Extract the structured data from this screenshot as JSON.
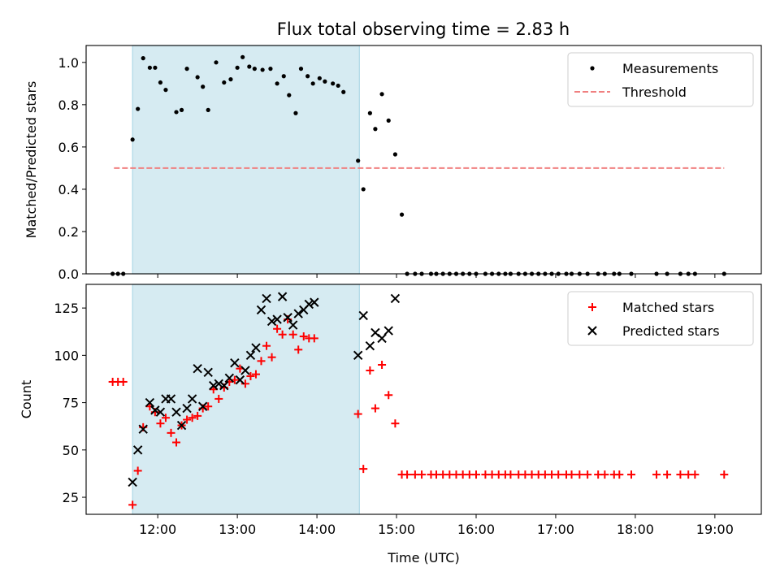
{
  "title": "Flux total observing time = 2.83 h",
  "chart_data": [
    {
      "type": "scatter",
      "ylabel": "Matched/Predicted stars",
      "xlim": [
        "11:06",
        "19:35"
      ],
      "ylim": [
        0,
        1.08
      ],
      "yticks": [
        "0.0",
        "0.2",
        "0.4",
        "0.6",
        "0.8",
        "1.0"
      ],
      "ytick_values": [
        0,
        0.2,
        0.4,
        0.6,
        0.8,
        1.0
      ],
      "shaded_span": [
        "11:41",
        "14:32"
      ],
      "legend_position": "top-right",
      "legend": [
        {
          "label": "Measurements",
          "marker": "dot",
          "color": "#000000"
        },
        {
          "label": "Threshold",
          "marker": "dashed-line",
          "color": "#f08080"
        }
      ],
      "threshold": {
        "value": 0.5,
        "x_range": [
          "11:27",
          "16:07"
        ]
      },
      "threshold_extended_end": "19:07",
      "measurements": [
        [
          "11:26",
          0
        ],
        [
          "11:30",
          0
        ],
        [
          "11:34",
          0
        ],
        [
          "11:41",
          0.635
        ],
        [
          "11:45",
          0.78
        ],
        [
          "11:49",
          1.02
        ],
        [
          "11:54",
          0.975
        ],
        [
          "11:58",
          0.975
        ],
        [
          "12:02",
          0.905
        ],
        [
          "12:06",
          0.87
        ],
        [
          "12:14",
          0.765
        ],
        [
          "12:18",
          0.775
        ],
        [
          "12:22",
          0.97
        ],
        [
          "12:30",
          0.93
        ],
        [
          "12:34",
          0.885
        ],
        [
          "12:38",
          0.775
        ],
        [
          "12:44",
          1.0
        ],
        [
          "12:50",
          0.905
        ],
        [
          "12:55",
          0.92
        ],
        [
          "13:00",
          0.975
        ],
        [
          "13:04",
          1.025
        ],
        [
          "13:09",
          0.98
        ],
        [
          "13:13",
          0.97
        ],
        [
          "13:19",
          0.965
        ],
        [
          "13:25",
          0.97
        ],
        [
          "13:30",
          0.9
        ],
        [
          "13:35",
          0.935
        ],
        [
          "13:39",
          0.845
        ],
        [
          "13:44",
          0.76
        ],
        [
          "13:48",
          0.97
        ],
        [
          "13:53",
          0.935
        ],
        [
          "13:57",
          0.9
        ],
        [
          "14:02",
          0.925
        ],
        [
          "14:06",
          0.91
        ],
        [
          "14:12",
          0.9
        ],
        [
          "14:16",
          0.89
        ],
        [
          "14:20",
          0.86
        ],
        [
          "14:31",
          0.535
        ],
        [
          "14:35",
          0.4
        ],
        [
          "14:40",
          0.76
        ],
        [
          "14:44",
          0.685
        ],
        [
          "14:49",
          0.85
        ],
        [
          "14:54",
          0.725
        ],
        [
          "14:59",
          0.565
        ],
        [
          "15:04",
          0.28
        ],
        [
          "15:08",
          0
        ],
        [
          "15:14",
          0
        ],
        [
          "15:19",
          0
        ],
        [
          "15:26",
          0
        ],
        [
          "15:30",
          0
        ],
        [
          "15:35",
          0
        ],
        [
          "15:40",
          0
        ],
        [
          "15:45",
          0
        ],
        [
          "15:50",
          0
        ],
        [
          "15:55",
          0
        ],
        [
          "16:00",
          0
        ],
        [
          "16:07",
          0
        ],
        [
          "16:12",
          0
        ],
        [
          "16:17",
          0
        ],
        [
          "16:22",
          0
        ],
        [
          "16:26",
          0
        ],
        [
          "16:32",
          0
        ],
        [
          "16:37",
          0
        ],
        [
          "16:42",
          0
        ],
        [
          "16:47",
          0
        ],
        [
          "16:52",
          0
        ],
        [
          "16:57",
          0
        ],
        [
          "17:02",
          0
        ],
        [
          "17:08",
          0
        ],
        [
          "17:12",
          0
        ],
        [
          "17:18",
          0
        ],
        [
          "17:24",
          0
        ],
        [
          "17:32",
          0
        ],
        [
          "17:37",
          0
        ],
        [
          "17:44",
          0
        ],
        [
          "17:48",
          0
        ],
        [
          "17:57",
          0
        ],
        [
          "18:16",
          0
        ],
        [
          "18:24",
          0
        ],
        [
          "18:34",
          0
        ],
        [
          "18:40",
          0
        ],
        [
          "18:45",
          0
        ],
        [
          "19:07",
          0
        ]
      ]
    },
    {
      "type": "scatter",
      "xlabel": "Time (UTC)",
      "ylabel": "Count",
      "xlim": [
        "11:06",
        "19:35"
      ],
      "ylim": [
        16,
        137.5
      ],
      "yticks": [
        "25",
        "50",
        "75",
        "100",
        "125"
      ],
      "ytick_values": [
        25,
        50,
        75,
        100,
        125
      ],
      "xticks": [
        "12:00",
        "13:00",
        "14:00",
        "15:00",
        "16:00",
        "17:00",
        "18:00",
        "19:00"
      ],
      "shaded_span": [
        "11:41",
        "14:32"
      ],
      "legend_position": "top-right",
      "series": [
        {
          "name": "Matched stars",
          "marker": "plus",
          "color": "#ff0000",
          "points": [
            [
              "11:26",
              86
            ],
            [
              "11:30",
              86
            ],
            [
              "11:34",
              86
            ],
            [
              "11:41",
              21
            ],
            [
              "11:45",
              39
            ],
            [
              "11:49",
              62
            ],
            [
              "11:54",
              73
            ],
            [
              "11:58",
              70
            ],
            [
              "12:02",
              64
            ],
            [
              "12:06",
              67
            ],
            [
              "12:10",
              59
            ],
            [
              "12:14",
              54
            ],
            [
              "12:18",
              63
            ],
            [
              "12:22",
              66
            ],
            [
              "12:26",
              67
            ],
            [
              "12:30",
              68
            ],
            [
              "12:34",
              72
            ],
            [
              "12:38",
              73
            ],
            [
              "12:42",
              82
            ],
            [
              "12:46",
              77
            ],
            [
              "12:50",
              83
            ],
            [
              "12:54",
              86
            ],
            [
              "12:58",
              87
            ],
            [
              "13:02",
              93
            ],
            [
              "13:06",
              85
            ],
            [
              "13:10",
              89
            ],
            [
              "13:14",
              90
            ],
            [
              "13:18",
              97
            ],
            [
              "13:22",
              105
            ],
            [
              "13:26",
              99
            ],
            [
              "13:30",
              114
            ],
            [
              "13:34",
              111
            ],
            [
              "13:38",
              119
            ],
            [
              "13:42",
              111
            ],
            [
              "13:46",
              103
            ],
            [
              "13:50",
              110
            ],
            [
              "13:54",
              109
            ],
            [
              "13:58",
              109
            ],
            [
              "14:31",
              69
            ],
            [
              "14:35",
              40
            ],
            [
              "14:40",
              92
            ],
            [
              "14:44",
              72
            ],
            [
              "14:49",
              95
            ],
            [
              "14:54",
              79
            ],
            [
              "14:59",
              64
            ],
            [
              "15:04",
              37
            ],
            [
              "15:08",
              37
            ],
            [
              "15:14",
              37
            ],
            [
              "15:19",
              37
            ],
            [
              "15:26",
              37
            ],
            [
              "15:30",
              37
            ],
            [
              "15:35",
              37
            ],
            [
              "15:40",
              37
            ],
            [
              "15:45",
              37
            ],
            [
              "15:50",
              37
            ],
            [
              "15:55",
              37
            ],
            [
              "16:00",
              37
            ],
            [
              "16:07",
              37
            ],
            [
              "16:12",
              37
            ],
            [
              "16:17",
              37
            ],
            [
              "16:22",
              37
            ],
            [
              "16:26",
              37
            ],
            [
              "16:32",
              37
            ],
            [
              "16:37",
              37
            ],
            [
              "16:42",
              37
            ],
            [
              "16:47",
              37
            ],
            [
              "16:52",
              37
            ],
            [
              "16:57",
              37
            ],
            [
              "17:02",
              37
            ],
            [
              "17:08",
              37
            ],
            [
              "17:12",
              37
            ],
            [
              "17:18",
              37
            ],
            [
              "17:24",
              37
            ],
            [
              "17:32",
              37
            ],
            [
              "17:37",
              37
            ],
            [
              "17:44",
              37
            ],
            [
              "17:48",
              37
            ],
            [
              "17:57",
              37
            ],
            [
              "18:16",
              37
            ],
            [
              "18:24",
              37
            ],
            [
              "18:34",
              37
            ],
            [
              "18:40",
              37
            ],
            [
              "18:45",
              37
            ],
            [
              "19:07",
              37
            ]
          ]
        },
        {
          "name": "Predicted stars",
          "marker": "x",
          "color": "#000000",
          "points": [
            [
              "11:41",
              33
            ],
            [
              "11:45",
              50
            ],
            [
              "11:49",
              61
            ],
            [
              "11:54",
              75
            ],
            [
              "11:58",
              71
            ],
            [
              "12:02",
              70
            ],
            [
              "12:06",
              77
            ],
            [
              "12:10",
              77
            ],
            [
              "12:14",
              70
            ],
            [
              "12:18",
              63
            ],
            [
              "12:22",
              72
            ],
            [
              "12:26",
              77
            ],
            [
              "12:30",
              93
            ],
            [
              "12:34",
              73
            ],
            [
              "12:38",
              91
            ],
            [
              "12:42",
              84
            ],
            [
              "12:46",
              85
            ],
            [
              "12:50",
              84
            ],
            [
              "12:54",
              88
            ],
            [
              "12:58",
              96
            ],
            [
              "13:02",
              87
            ],
            [
              "13:06",
              92
            ],
            [
              "13:10",
              100
            ],
            [
              "13:14",
              104
            ],
            [
              "13:18",
              124
            ],
            [
              "13:22",
              130
            ],
            [
              "13:26",
              118
            ],
            [
              "13:30",
              119
            ],
            [
              "13:34",
              131
            ],
            [
              "13:38",
              120
            ],
            [
              "13:42",
              116
            ],
            [
              "13:46",
              122
            ],
            [
              "13:50",
              124
            ],
            [
              "13:54",
              127
            ],
            [
              "13:58",
              128
            ],
            [
              "14:31",
              100
            ],
            [
              "14:35",
              121
            ],
            [
              "14:40",
              105
            ],
            [
              "14:44",
              112
            ],
            [
              "14:49",
              109
            ],
            [
              "14:54",
              113
            ],
            [
              "14:59",
              130
            ]
          ]
        }
      ]
    }
  ]
}
